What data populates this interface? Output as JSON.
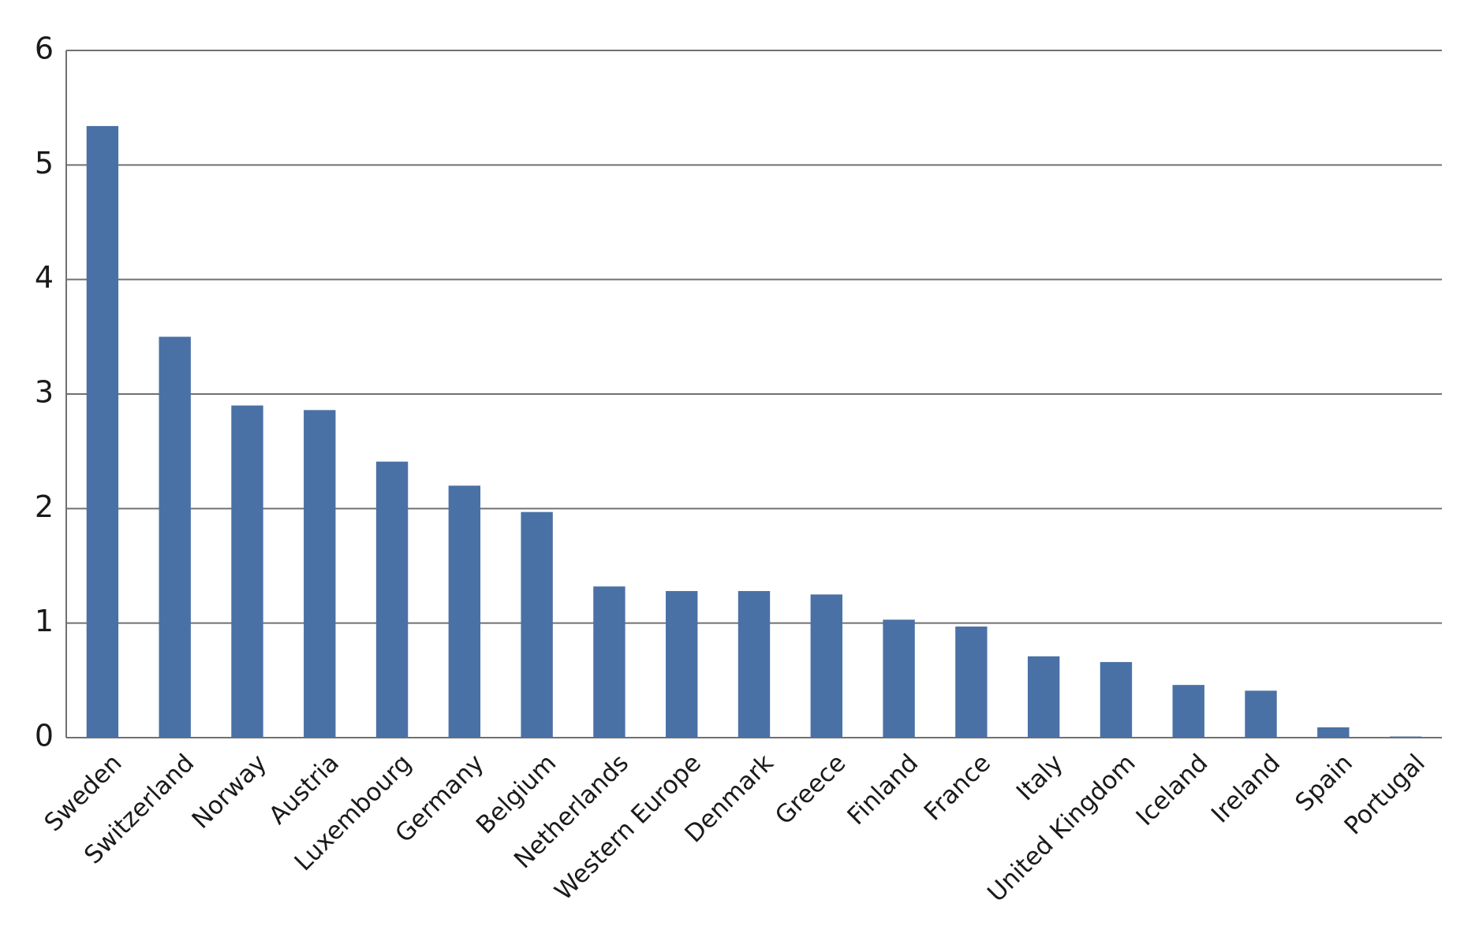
{
  "chart_data": {
    "type": "bar",
    "categories": [
      "Sweden",
      "Switzerland",
      "Norway",
      "Austria",
      "Luxembourg",
      "Germany",
      "Belgium",
      "Netherlands",
      "Western Europe",
      "Denmark",
      "Greece",
      "Finland",
      "France",
      "Italy",
      "United Kingdom",
      "Iceland",
      "Ireland",
      "Spain",
      "Portugal"
    ],
    "values": [
      5.34,
      3.5,
      2.9,
      2.86,
      2.41,
      2.2,
      1.97,
      1.32,
      1.28,
      1.28,
      1.25,
      1.03,
      0.97,
      0.71,
      0.66,
      0.46,
      0.41,
      0.09,
      0.01
    ],
    "color": "#4a71a6",
    "ylim": [
      0,
      6
    ],
    "yticks": [
      0,
      1,
      2,
      3,
      4,
      5,
      6
    ],
    "grid": true
  }
}
